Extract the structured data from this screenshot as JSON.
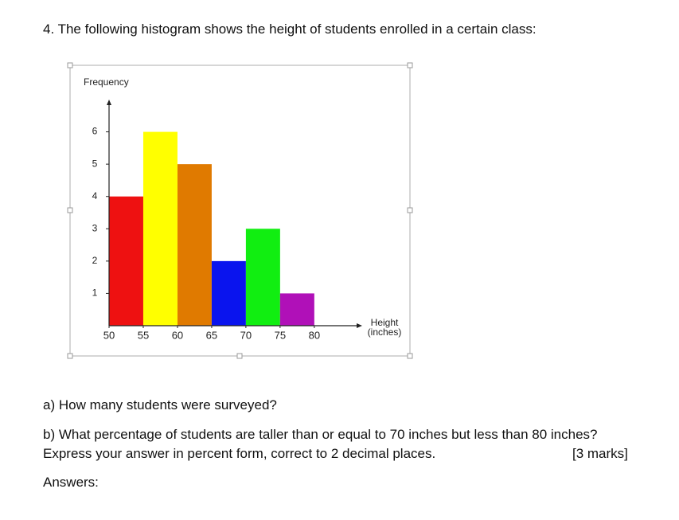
{
  "question": "4. The following histogram shows the height of students enrolled in a certain class:",
  "chart_data": {
    "type": "histogram",
    "ylabel": "Frequency",
    "xlabel": "Height (inches)",
    "bins": [
      50,
      55,
      60,
      65,
      70,
      75,
      80
    ],
    "counts": [
      4,
      6,
      5,
      2,
      3,
      1
    ],
    "colors": [
      "#ee1111",
      "#ffff00",
      "#e07a00",
      "#0a14ee",
      "#11ee11",
      "#b010b8"
    ],
    "xlim": [
      50,
      87
    ],
    "xticks": [
      50,
      55,
      60,
      65,
      70,
      75,
      80
    ],
    "ylim": [
      0,
      7
    ],
    "yticks": [
      1,
      2,
      3,
      4,
      5,
      6
    ]
  },
  "question_a": "a) How many students were surveyed?",
  "question_b": "b) What percentage of students are taller than or equal to 70 inches but less than 80 inches? Express your answer in percent form, correct to 2 decimal places.",
  "marks": "[3 marks]",
  "answers": "Answers:"
}
